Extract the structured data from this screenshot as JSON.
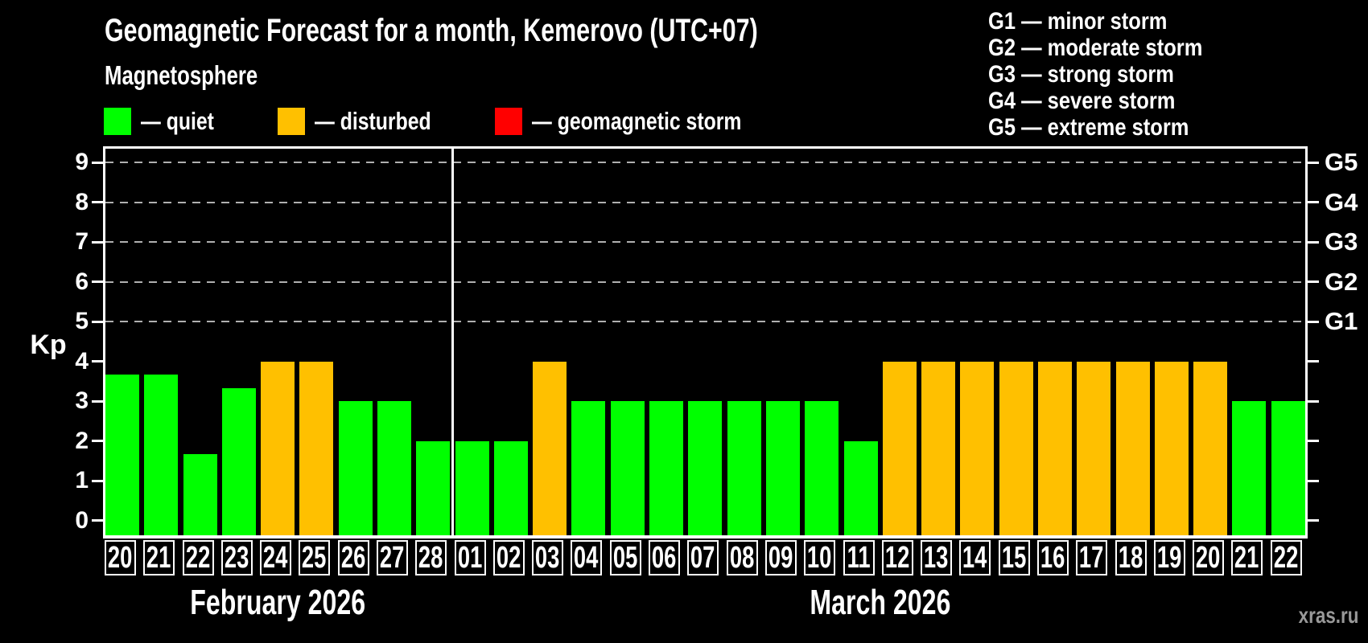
{
  "header": {
    "title": "Geomagnetic Forecast for a month, Kemerovo (UTC+07)",
    "subtitle": "Magnetosphere"
  },
  "legend": {
    "items": [
      {
        "label": "— quiet",
        "status": "quiet",
        "color": "#00ff00"
      },
      {
        "label": "— disturbed",
        "status": "disturbed",
        "color": "#ffc000"
      },
      {
        "label": "— geomagnetic storm",
        "status": "storm",
        "color": "#ff0000"
      }
    ]
  },
  "storm_scale": [
    {
      "text": "G1 — minor storm"
    },
    {
      "text": "G2 — moderate storm"
    },
    {
      "text": "G3 — strong storm"
    },
    {
      "text": "G4 — severe storm"
    },
    {
      "text": "G5 — extreme storm"
    }
  ],
  "chart_data": {
    "type": "bar",
    "ylabel": "Kp",
    "ylim": [
      0,
      9
    ],
    "yticks": [
      0,
      1,
      2,
      3,
      4,
      5,
      6,
      7,
      8,
      9
    ],
    "grid_values": [
      5,
      6,
      7,
      8,
      9
    ],
    "grid_on": true,
    "right_axis": [
      {
        "value": 5,
        "label": "G1"
      },
      {
        "value": 6,
        "label": "G2"
      },
      {
        "value": 7,
        "label": "G3"
      },
      {
        "value": 8,
        "label": "G4"
      },
      {
        "value": 9,
        "label": "G5"
      }
    ],
    "colors": {
      "quiet": "#00ff00",
      "disturbed": "#ffc000",
      "storm": "#ff0000"
    },
    "months": [
      {
        "label": "February 2026",
        "bars": [
          {
            "day": "20",
            "value": 3.67,
            "status": "quiet"
          },
          {
            "day": "21",
            "value": 3.67,
            "status": "quiet"
          },
          {
            "day": "22",
            "value": 1.67,
            "status": "quiet"
          },
          {
            "day": "23",
            "value": 3.33,
            "status": "quiet"
          },
          {
            "day": "24",
            "value": 4,
            "status": "disturbed"
          },
          {
            "day": "25",
            "value": 4,
            "status": "disturbed"
          },
          {
            "day": "26",
            "value": 3,
            "status": "quiet"
          },
          {
            "day": "27",
            "value": 3,
            "status": "quiet"
          },
          {
            "day": "28",
            "value": 2,
            "status": "quiet"
          }
        ]
      },
      {
        "label": "March 2026",
        "bars": [
          {
            "day": "01",
            "value": 2,
            "status": "quiet"
          },
          {
            "day": "02",
            "value": 2,
            "status": "quiet"
          },
          {
            "day": "03",
            "value": 4,
            "status": "disturbed"
          },
          {
            "day": "04",
            "value": 3,
            "status": "quiet"
          },
          {
            "day": "05",
            "value": 3,
            "status": "quiet"
          },
          {
            "day": "06",
            "value": 3,
            "status": "quiet"
          },
          {
            "day": "07",
            "value": 3,
            "status": "quiet"
          },
          {
            "day": "08",
            "value": 3,
            "status": "quiet"
          },
          {
            "day": "09",
            "value": 3,
            "status": "quiet"
          },
          {
            "day": "10",
            "value": 3,
            "status": "quiet"
          },
          {
            "day": "11",
            "value": 2,
            "status": "quiet"
          },
          {
            "day": "12",
            "value": 4,
            "status": "disturbed"
          },
          {
            "day": "13",
            "value": 4,
            "status": "disturbed"
          },
          {
            "day": "14",
            "value": 4,
            "status": "disturbed"
          },
          {
            "day": "15",
            "value": 4,
            "status": "disturbed"
          },
          {
            "day": "16",
            "value": 4,
            "status": "disturbed"
          },
          {
            "day": "17",
            "value": 4,
            "status": "disturbed"
          },
          {
            "day": "18",
            "value": 4,
            "status": "disturbed"
          },
          {
            "day": "19",
            "value": 4,
            "status": "disturbed"
          },
          {
            "day": "20",
            "value": 4,
            "status": "disturbed"
          },
          {
            "day": "21",
            "value": 3,
            "status": "quiet"
          },
          {
            "day": "22",
            "value": 3,
            "status": "quiet"
          }
        ]
      }
    ]
  },
  "watermark": "xras.ru"
}
